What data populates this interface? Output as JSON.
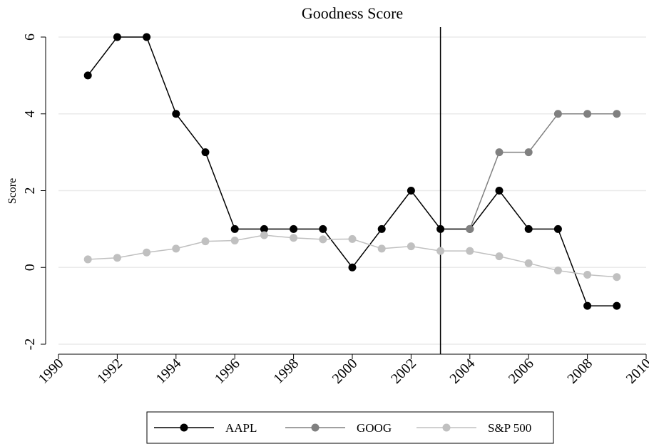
{
  "chart_data": {
    "type": "line",
    "title": "Goodness Score",
    "y_label": "Score",
    "x": [
      1991,
      1992,
      1993,
      1994,
      1995,
      1996,
      1997,
      1998,
      1999,
      2000,
      2001,
      2002,
      2003,
      2004,
      2005,
      2006,
      2007,
      2008,
      2009
    ],
    "series": [
      {
        "name": "AAPL",
        "color": "#000000",
        "values": [
          5,
          6,
          6,
          4,
          3,
          1,
          1,
          1,
          1,
          0,
          1,
          2,
          1,
          1,
          2,
          1,
          1,
          -1,
          -1
        ]
      },
      {
        "name": "GOOG",
        "color": "#808080",
        "values": [
          null,
          null,
          null,
          null,
          null,
          null,
          null,
          null,
          null,
          null,
          null,
          null,
          null,
          1,
          3,
          3,
          4,
          4,
          4
        ]
      },
      {
        "name": "S&P 500",
        "color": "#c0c0c0",
        "values": [
          0.21,
          0.25,
          0.39,
          0.49,
          0.68,
          0.7,
          0.84,
          0.77,
          0.73,
          0.74,
          0.49,
          0.55,
          0.43,
          0.43,
          0.29,
          0.11,
          -0.08,
          -0.19,
          -0.25
        ]
      }
    ],
    "xlim": [
      1990,
      2010
    ],
    "xticks": [
      1990,
      1992,
      1994,
      1996,
      1998,
      2000,
      2002,
      2004,
      2006,
      2008,
      2010
    ],
    "ylim": [
      -2.26,
      6.26
    ],
    "yticks": [
      -2,
      0,
      2,
      4,
      6
    ],
    "grid": true,
    "reference_line": 2003,
    "legend": "bottom"
  }
}
